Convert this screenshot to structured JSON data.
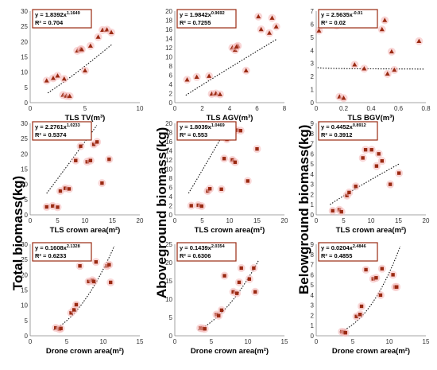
{
  "figure": {
    "row_labels": [
      "Total biomass(kg)",
      "Aboveground biomass(kg)",
      "Belowground biomass(kg)"
    ]
  },
  "chart_data": [
    {
      "id": "total-tv",
      "type": "scatter",
      "marker": "triangle",
      "xlabel": "TLS TV(m³)",
      "xlim": [
        0,
        10
      ],
      "xticks": [
        "0",
        "5",
        "10"
      ],
      "ylim": [
        0,
        30
      ],
      "yticks": [
        "0",
        "5",
        "10",
        "15",
        "20",
        "25",
        "30"
      ],
      "equation": "y = 1.8392x^1.1649",
      "equation_base": "y = 1.8392x",
      "equation_exp": "1.1649",
      "r2": "R² = 0.704",
      "fit": {
        "form": "power",
        "a": 1.8392,
        "b": 1.1649,
        "xrange": [
          1.6,
          7.5
        ]
      },
      "points": [
        [
          1.5,
          7.2
        ],
        [
          2.1,
          8.0
        ],
        [
          2.5,
          8.8
        ],
        [
          3.0,
          2.5
        ],
        [
          3.1,
          7.8
        ],
        [
          3.3,
          2.2
        ],
        [
          3.6,
          2.1
        ],
        [
          4.3,
          17.0
        ],
        [
          4.6,
          17.5
        ],
        [
          4.7,
          17.4
        ],
        [
          5.0,
          10.5
        ],
        [
          5.5,
          18.6
        ],
        [
          6.2,
          21.5
        ],
        [
          6.6,
          23.8
        ],
        [
          7.0,
          23.9
        ],
        [
          7.4,
          23.0
        ]
      ]
    },
    {
      "id": "above-agv",
      "type": "scatter",
      "marker": "triangle",
      "xlabel": "TLS AGV(m³)",
      "xlim": [
        0,
        8
      ],
      "xticks": [
        "0",
        "2",
        "4",
        "6",
        "8"
      ],
      "ylim": [
        0,
        20
      ],
      "yticks": [
        "0",
        "2",
        "4",
        "6",
        "8",
        "10",
        "12",
        "14",
        "16",
        "18",
        "20"
      ],
      "equation": "y = 1.9842x^0.9692",
      "equation_base": "y = 1.9842x",
      "equation_exp": "0.9692",
      "r2": "R² = 0.7255",
      "fit": {
        "form": "power",
        "a": 1.9842,
        "b": 0.9692,
        "xrange": [
          0.8,
          7.4
        ]
      },
      "points": [
        [
          0.9,
          5.0
        ],
        [
          1.6,
          5.6
        ],
        [
          2.5,
          5.8
        ],
        [
          2.7,
          1.9
        ],
        [
          3.0,
          2.0
        ],
        [
          3.3,
          1.8
        ],
        [
          4.2,
          12.0
        ],
        [
          4.4,
          11.5
        ],
        [
          4.6,
          12.4
        ],
        [
          4.5,
          12.2
        ],
        [
          5.2,
          7.0
        ],
        [
          6.1,
          18.8
        ],
        [
          6.3,
          16.0
        ],
        [
          6.9,
          15.2
        ],
        [
          7.1,
          18.5
        ],
        [
          7.4,
          16.6
        ]
      ]
    },
    {
      "id": "below-bgv",
      "type": "scatter",
      "marker": "triangle",
      "xlabel": "TLS BGV(m³)",
      "xlim": [
        0,
        0.8
      ],
      "xticks": [
        "0",
        "0.2",
        "0.4",
        "0.6",
        "0.8"
      ],
      "ylim": [
        0,
        7
      ],
      "yticks": [
        "0",
        "1",
        "2",
        "3",
        "4",
        "5",
        "6",
        "7"
      ],
      "equation": "y = 2.5635x^-0.01",
      "equation_base": "y = 2.5635x",
      "equation_exp": "-0.01",
      "r2": "R² = 0.02",
      "fit": {
        "form": "power",
        "a": 2.5635,
        "b": -0.01,
        "xrange": [
          0.01,
          0.79
        ]
      },
      "points": [
        [
          0.02,
          5.5
        ],
        [
          0.15,
          5.9
        ],
        [
          0.17,
          0.45
        ],
        [
          0.2,
          0.35
        ],
        [
          0.22,
          6.3
        ],
        [
          0.28,
          2.9
        ],
        [
          0.35,
          2.6
        ],
        [
          0.4,
          6.2
        ],
        [
          0.48,
          5.6
        ],
        [
          0.5,
          6.3
        ],
        [
          0.52,
          2.2
        ],
        [
          0.55,
          3.9
        ],
        [
          0.57,
          2.5
        ],
        [
          0.75,
          4.7
        ]
      ]
    },
    {
      "id": "total-crown",
      "type": "scatter",
      "marker": "square",
      "xlabel": "TLS crown area(m²)",
      "xlim": [
        0,
        20
      ],
      "xticks": [
        "0",
        "5",
        "10",
        "15",
        "20"
      ],
      "ylim": [
        0,
        30
      ],
      "yticks": [
        "0",
        "5",
        "10",
        "15",
        "20",
        "25",
        "30"
      ],
      "equation": "y = 2.2761x^1.0233",
      "equation_base": "y = 2.2761x",
      "equation_exp": "1.0233",
      "r2": "R² = 0.5374",
      "fit": {
        "form": "power",
        "a": 2.2761,
        "b": 1.0233,
        "xrange": [
          3.0,
          15.2
        ]
      },
      "points": [
        [
          3.0,
          2.6
        ],
        [
          4.1,
          2.9
        ],
        [
          5.0,
          2.5
        ],
        [
          5.5,
          7.8
        ],
        [
          6.4,
          8.7
        ],
        [
          7.1,
          8.5
        ],
        [
          8.3,
          17.8
        ],
        [
          9.2,
          22.5
        ],
        [
          10.4,
          17.4
        ],
        [
          11.0,
          17.8
        ],
        [
          11.6,
          23.1
        ],
        [
          12.2,
          23.9
        ],
        [
          13.1,
          10.4
        ],
        [
          14.4,
          18.2
        ]
      ]
    },
    {
      "id": "above-crown",
      "type": "scatter",
      "marker": "square",
      "xlabel": "TLS crown area(m²)",
      "xlim": [
        0,
        20
      ],
      "xticks": [
        "0",
        "5",
        "10",
        "15",
        "20"
      ],
      "ylim": [
        0,
        20
      ],
      "yticks": [
        "0",
        "2",
        "4",
        "6",
        "8",
        "10",
        "12",
        "14",
        "16",
        "18",
        "20"
      ],
      "equation": "y = 1.8039x^1.0469",
      "equation_base": "y = 1.8039x",
      "equation_exp": "1.0469",
      "r2": "R² = 0.553",
      "fit": {
        "form": "power",
        "a": 1.8039,
        "b": 1.0469,
        "xrange": [
          2.5,
          13.8
        ]
      },
      "points": [
        [
          3.0,
          2.0
        ],
        [
          4.3,
          2.1
        ],
        [
          4.9,
          1.9
        ],
        [
          6.0,
          5.2
        ],
        [
          6.4,
          5.7
        ],
        [
          8.5,
          5.6
        ],
        [
          9.0,
          12.3
        ],
        [
          9.5,
          16.5
        ],
        [
          10.5,
          12.0
        ],
        [
          11.0,
          11.5
        ],
        [
          11.3,
          18.5
        ],
        [
          12.0,
          18.4
        ],
        [
          13.3,
          7.4
        ],
        [
          15.0,
          14.4
        ]
      ]
    },
    {
      "id": "below-crown",
      "type": "scatter",
      "marker": "square",
      "xlabel": "TLS crown area(m²)",
      "xlim": [
        0,
        20
      ],
      "xticks": [
        "0",
        "5",
        "10",
        "15",
        "20"
      ],
      "ylim": [
        0,
        9
      ],
      "yticks": [
        "0",
        "1",
        "2",
        "3",
        "4",
        "5",
        "6",
        "7",
        "8",
        "9"
      ],
      "equation": "y = 0.4452x^0.8912",
      "equation_base": "y = 0.4452x",
      "equation_exp": "0.8912",
      "r2": "R² = 0.3912",
      "fit": {
        "form": "power",
        "a": 0.4452,
        "b": 0.8912,
        "xrange": [
          2.5,
          15.2
        ]
      },
      "points": [
        [
          3.0,
          0.4
        ],
        [
          4.2,
          0.5
        ],
        [
          4.6,
          0.3
        ],
        [
          5.6,
          1.9
        ],
        [
          6.0,
          2.2
        ],
        [
          7.2,
          2.8
        ],
        [
          8.5,
          5.6
        ],
        [
          9.0,
          6.4
        ],
        [
          10.1,
          6.4
        ],
        [
          11.0,
          4.8
        ],
        [
          11.4,
          6.0
        ],
        [
          12.0,
          5.3
        ],
        [
          13.5,
          3.0
        ],
        [
          15.1,
          4.1
        ]
      ]
    },
    {
      "id": "total-drone",
      "type": "scatter",
      "marker": "square",
      "xlabel": "Drone crown area(m²)",
      "xlim": [
        0,
        15
      ],
      "xticks": [
        "0",
        "5",
        "10",
        "15"
      ],
      "ylim": [
        0,
        30
      ],
      "yticks": [
        "0",
        "5",
        "10",
        "15",
        "20",
        "25",
        "30"
      ],
      "equation": "y = 0.1608x^2.1328",
      "equation_base": "y = 0.1608x",
      "equation_exp": "2.1328",
      "r2": "R² = 0.6233",
      "fit": {
        "form": "power",
        "a": 0.1608,
        "b": 2.1328,
        "xrange": [
          3.2,
          11.5
        ]
      },
      "points": [
        [
          3.5,
          2.6
        ],
        [
          4.0,
          2.2
        ],
        [
          4.2,
          2.4
        ],
        [
          5.6,
          7.5
        ],
        [
          6.0,
          8.5
        ],
        [
          6.3,
          10.2
        ],
        [
          6.8,
          22.9
        ],
        [
          8.0,
          17.8
        ],
        [
          8.5,
          18.2
        ],
        [
          8.7,
          17.8
        ],
        [
          9.0,
          24.2
        ],
        [
          10.5,
          22.9
        ],
        [
          10.8,
          23.3
        ],
        [
          11.0,
          17.5
        ]
      ]
    },
    {
      "id": "above-drone",
      "type": "scatter",
      "marker": "square",
      "xlabel": "Drone crown area(m²)",
      "xlim": [
        0,
        15
      ],
      "xticks": [
        "0",
        "5",
        "10",
        "15"
      ],
      "ylim": [
        0,
        25
      ],
      "yticks": [
        "0",
        "5",
        "10",
        "15",
        "20",
        "25"
      ],
      "equation": "y = 0.1439x^2.0354",
      "equation_base": "y = 0.1439x",
      "equation_exp": "2.0354",
      "r2": "R² = 0.6306",
      "fit": {
        "form": "power",
        "a": 0.1439,
        "b": 2.0354,
        "xrange": [
          3.2,
          11.5
        ]
      },
      "points": [
        [
          3.5,
          2.1
        ],
        [
          3.8,
          2.0
        ],
        [
          4.1,
          1.9
        ],
        [
          5.7,
          5.8
        ],
        [
          6.0,
          5.5
        ],
        [
          6.4,
          7.0
        ],
        [
          6.8,
          16.4
        ],
        [
          8.0,
          12.0
        ],
        [
          8.5,
          11.6
        ],
        [
          8.8,
          14.6
        ],
        [
          9.1,
          18.5
        ],
        [
          10.2,
          15.5
        ],
        [
          10.8,
          18.5
        ],
        [
          11.0,
          12.0
        ]
      ]
    },
    {
      "id": "below-drone",
      "type": "scatter",
      "marker": "square",
      "xlabel": "Drone crown area(m²)",
      "xlim": [
        0,
        15
      ],
      "xticks": [
        "0",
        "5",
        "10",
        "15"
      ],
      "ylim": [
        0,
        9
      ],
      "yticks": [
        "0",
        "1",
        "2",
        "3",
        "4",
        "5",
        "6",
        "7",
        "8",
        "9"
      ],
      "equation": "y = 0.0204x^2.4846",
      "equation_base": "y = 0.0204x",
      "equation_exp": "2.4846",
      "r2": "R² = 0.4855",
      "fit": {
        "form": "power",
        "a": 0.0204,
        "b": 2.4846,
        "xrange": [
          3.2,
          11.5
        ]
      },
      "points": [
        [
          3.5,
          0.4
        ],
        [
          3.8,
          0.35
        ],
        [
          4.0,
          0.3
        ],
        [
          5.5,
          1.9
        ],
        [
          6.0,
          2.1
        ],
        [
          6.2,
          2.9
        ],
        [
          6.8,
          6.5
        ],
        [
          7.8,
          5.6
        ],
        [
          8.2,
          5.7
        ],
        [
          8.8,
          4.0
        ],
        [
          9.0,
          6.6
        ],
        [
          10.5,
          6.0
        ],
        [
          10.8,
          4.8
        ],
        [
          11.0,
          4.8
        ]
      ]
    }
  ]
}
